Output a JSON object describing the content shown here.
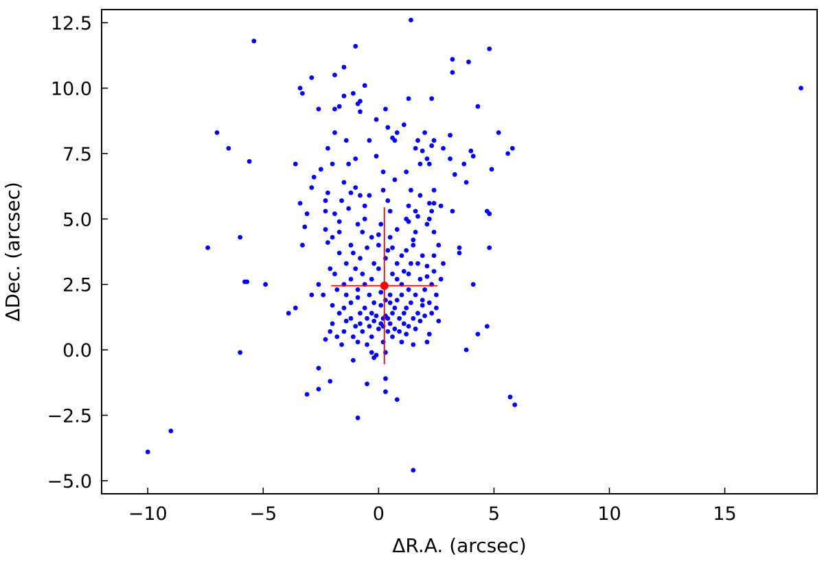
{
  "chart_data": {
    "type": "scatter",
    "title": "",
    "xlabel": "ΔR.A. (arcsec)",
    "ylabel": "ΔDec. (arcsec)",
    "xlim": [
      -12.0,
      19.0
    ],
    "ylim": [
      -5.5,
      13.0
    ],
    "xticks": [
      -10,
      -5,
      0,
      5,
      10,
      15
    ],
    "xtick_labels": [
      "−10",
      "−5",
      "0",
      "5",
      "10",
      "15"
    ],
    "yticks": [
      -5.0,
      -2.5,
      0.0,
      2.5,
      5.0,
      7.5,
      10.0,
      12.5
    ],
    "ytick_labels": [
      "−5.0",
      "−2.5",
      "0.0",
      "2.5",
      "5.0",
      "7.5",
      "10.0",
      "12.5"
    ],
    "tick_direction": "in",
    "grid": false,
    "series": [
      {
        "color": "#0000ff",
        "marker": "circle",
        "points": [
          [
            1.4,
            12.6
          ],
          [
            -5.4,
            11.8
          ],
          [
            -1.0,
            11.6
          ],
          [
            4.8,
            11.5
          ],
          [
            3.2,
            11.1
          ],
          [
            3.9,
            11.0
          ],
          [
            -1.5,
            10.8
          ],
          [
            -2.9,
            10.4
          ],
          [
            -1.9,
            10.5
          ],
          [
            3.2,
            10.6
          ],
          [
            -0.6,
            10.1
          ],
          [
            -1.1,
            9.8
          ],
          [
            -3.4,
            10.0
          ],
          [
            -3.3,
            9.8
          ],
          [
            -1.5,
            9.7
          ],
          [
            1.3,
            9.6
          ],
          [
            -0.8,
            9.5
          ],
          [
            2.3,
            9.6
          ],
          [
            -1.7,
            9.3
          ],
          [
            -2.6,
            9.2
          ],
          [
            -1.9,
            9.2
          ],
          [
            -0.8,
            9.1
          ],
          [
            0.3,
            9.2
          ],
          [
            -0.9,
            9.4
          ],
          [
            4.3,
            9.3
          ],
          [
            -0.1,
            8.8
          ],
          [
            0.4,
            8.5
          ],
          [
            1.1,
            8.6
          ],
          [
            2.0,
            8.3
          ],
          [
            -1.9,
            8.3
          ],
          [
            -7.0,
            8.3
          ],
          [
            0.8,
            8.3
          ],
          [
            1.7,
            8.0
          ],
          [
            2.4,
            8.0
          ],
          [
            3.1,
            8.2
          ],
          [
            -1.4,
            8.0
          ],
          [
            -0.4,
            8.0
          ],
          [
            0.6,
            8.1
          ],
          [
            0.7,
            8.0
          ],
          [
            5.2,
            8.3
          ],
          [
            -6.5,
            7.7
          ],
          [
            -2.2,
            7.7
          ],
          [
            1.6,
            7.7
          ],
          [
            1.9,
            7.6
          ],
          [
            2.3,
            7.8
          ],
          [
            2.8,
            7.7
          ],
          [
            4.0,
            7.6
          ],
          [
            4.1,
            7.4
          ],
          [
            5.6,
            7.5
          ],
          [
            5.8,
            7.7
          ],
          [
            -1.0,
            7.3
          ],
          [
            -0.1,
            7.4
          ],
          [
            2.1,
            7.3
          ],
          [
            3.1,
            7.3
          ],
          [
            3.7,
            7.1
          ],
          [
            -5.6,
            7.2
          ],
          [
            -3.6,
            7.1
          ],
          [
            -2.0,
            7.1
          ],
          [
            -1.3,
            7.1
          ],
          [
            1.8,
            7.1
          ],
          [
            2.2,
            7.1
          ],
          [
            4.9,
            6.9
          ],
          [
            -2.5,
            6.9
          ],
          [
            0.2,
            6.8
          ],
          [
            1.2,
            6.8
          ],
          [
            3.3,
            6.7
          ],
          [
            -2.8,
            6.6
          ],
          [
            0.7,
            6.5
          ],
          [
            -1.5,
            6.4
          ],
          [
            3.8,
            6.4
          ],
          [
            -2.9,
            6.2
          ],
          [
            -1.0,
            6.2
          ],
          [
            0.2,
            6.1
          ],
          [
            1.4,
            6.1
          ],
          [
            2.4,
            6.1
          ],
          [
            -2.2,
            6.0
          ],
          [
            -1.2,
            6.0
          ],
          [
            -0.8,
            5.9
          ],
          [
            -0.4,
            5.9
          ],
          [
            1.8,
            5.9
          ],
          [
            0.4,
            5.7
          ],
          [
            -2.3,
            5.7
          ],
          [
            -1.6,
            5.7
          ],
          [
            2.4,
            5.6
          ],
          [
            -3.4,
            5.6
          ],
          [
            1.3,
            5.5
          ],
          [
            2.2,
            5.6
          ],
          [
            2.7,
            5.5
          ],
          [
            -2.3,
            5.3
          ],
          [
            -1.3,
            5.4
          ],
          [
            -0.6,
            5.5
          ],
          [
            0.5,
            5.3
          ],
          [
            1.6,
            5.3
          ],
          [
            2.3,
            5.3
          ],
          [
            3.2,
            5.3
          ],
          [
            4.7,
            5.3
          ],
          [
            4.8,
            5.2
          ],
          [
            -3.1,
            5.2
          ],
          [
            -1.9,
            5.2
          ],
          [
            -0.6,
            5.0
          ],
          [
            1.2,
            5.0
          ],
          [
            1.7,
            5.1
          ],
          [
            2.2,
            5.0
          ],
          [
            -1.7,
            4.9
          ],
          [
            -0.9,
            4.8
          ],
          [
            0.1,
            4.8
          ],
          [
            1.3,
            4.9
          ],
          [
            2.1,
            4.8
          ],
          [
            -3.2,
            4.7
          ],
          [
            -2.3,
            4.6
          ],
          [
            -1.7,
            4.5
          ],
          [
            -0.7,
            4.5
          ],
          [
            0.8,
            4.6
          ],
          [
            1.6,
            4.5
          ],
          [
            2.4,
            4.5
          ],
          [
            -6.0,
            4.3
          ],
          [
            -2.0,
            4.3
          ],
          [
            -0.3,
            4.3
          ],
          [
            0.0,
            4.4
          ],
          [
            0.5,
            4.3
          ],
          [
            1.5,
            4.2
          ],
          [
            -3.3,
            4.0
          ],
          [
            -2.2,
            4.1
          ],
          [
            -1.2,
            4.0
          ],
          [
            -0.5,
            3.9
          ],
          [
            0.0,
            4.0
          ],
          [
            0.6,
            3.9
          ],
          [
            1.5,
            4.0
          ],
          [
            2.6,
            4.0
          ],
          [
            3.5,
            3.9
          ],
          [
            4.8,
            3.9
          ],
          [
            -7.4,
            3.9
          ],
          [
            -1.7,
            3.7
          ],
          [
            -1.1,
            3.7
          ],
          [
            0.4,
            3.8
          ],
          [
            1.2,
            3.8
          ],
          [
            3.5,
            3.7
          ],
          [
            -0.8,
            3.5
          ],
          [
            0.3,
            3.5
          ],
          [
            1.0,
            3.6
          ],
          [
            1.9,
            3.6
          ],
          [
            2.4,
            3.6
          ],
          [
            -1.4,
            3.3
          ],
          [
            -0.2,
            3.3
          ],
          [
            0.8,
            3.3
          ],
          [
            1.4,
            3.3
          ],
          [
            1.7,
            3.3
          ],
          [
            2.1,
            3.2
          ],
          [
            2.8,
            3.3
          ],
          [
            -2.1,
            3.1
          ],
          [
            -1.0,
            3.1
          ],
          [
            0.0,
            3.1
          ],
          [
            1.1,
            3.0
          ],
          [
            2.4,
            3.0
          ],
          [
            -1.9,
            2.9
          ],
          [
            -0.7,
            2.9
          ],
          [
            0.6,
            2.9
          ],
          [
            1.3,
            2.9
          ],
          [
            2.1,
            2.8
          ],
          [
            -1.2,
            2.7
          ],
          [
            -0.3,
            2.7
          ],
          [
            0.8,
            2.7
          ],
          [
            1.8,
            2.7
          ],
          [
            2.7,
            2.7
          ],
          [
            -5.8,
            2.6
          ],
          [
            -5.7,
            2.6
          ],
          [
            -1.5,
            2.5
          ],
          [
            -0.6,
            2.5
          ],
          [
            1.0,
            2.5
          ],
          [
            2.3,
            2.5
          ],
          [
            -4.9,
            2.5
          ],
          [
            -2.6,
            2.5
          ],
          [
            4.1,
            2.5
          ],
          [
            -1.8,
            2.3
          ],
          [
            -0.9,
            2.3
          ],
          [
            0.1,
            2.2
          ],
          [
            1.3,
            2.3
          ],
          [
            2.0,
            2.3
          ],
          [
            -2.4,
            2.1
          ],
          [
            -1.4,
            2.1
          ],
          [
            -0.4,
            2.1
          ],
          [
            0.5,
            2.1
          ],
          [
            1.0,
            2.1
          ],
          [
            1.6,
            2.1
          ],
          [
            2.5,
            2.1
          ],
          [
            -2.9,
            2.1
          ],
          [
            -0.9,
            2.0
          ],
          [
            0.3,
            1.9
          ],
          [
            0.8,
            1.9
          ],
          [
            1.9,
            1.9
          ],
          [
            -1.2,
            1.8
          ],
          [
            -0.2,
            1.8
          ],
          [
            0.5,
            1.8
          ],
          [
            1.4,
            1.8
          ],
          [
            2.2,
            1.8
          ],
          [
            -3.6,
            1.6
          ],
          [
            -2.0,
            1.7
          ],
          [
            -1.5,
            1.6
          ],
          [
            -0.6,
            1.6
          ],
          [
            0.1,
            1.7
          ],
          [
            0.7,
            1.6
          ],
          [
            1.2,
            1.6
          ],
          [
            1.9,
            1.7
          ],
          [
            2.5,
            1.6
          ],
          [
            -1.7,
            1.4
          ],
          [
            -0.8,
            1.4
          ],
          [
            -0.3,
            1.4
          ],
          [
            0.3,
            1.3
          ],
          [
            0.6,
            1.4
          ],
          [
            1.1,
            1.4
          ],
          [
            1.7,
            1.4
          ],
          [
            2.3,
            1.4
          ],
          [
            -3.9,
            1.4
          ],
          [
            -1.2,
            1.2
          ],
          [
            -0.5,
            1.2
          ],
          [
            -0.1,
            1.3
          ],
          [
            0.2,
            1.2
          ],
          [
            0.4,
            1.2
          ],
          [
            0.9,
            1.2
          ],
          [
            1.5,
            1.2
          ],
          [
            2.0,
            1.3
          ],
          [
            -2.0,
            1.0
          ],
          [
            -1.4,
            1.1
          ],
          [
            -0.8,
            1.0
          ],
          [
            -0.2,
            1.1
          ],
          [
            0.1,
            1.0
          ],
          [
            0.5,
            1.0
          ],
          [
            1.1,
            1.0
          ],
          [
            1.8,
            1.1
          ],
          [
            2.6,
            1.1
          ],
          [
            -1.0,
            0.9
          ],
          [
            -0.4,
            0.9
          ],
          [
            0.2,
            0.9
          ],
          [
            0.7,
            0.8
          ],
          [
            1.3,
            0.9
          ],
          [
            4.7,
            0.9
          ],
          [
            -2.1,
            0.7
          ],
          [
            -1.5,
            0.7
          ],
          [
            -0.7,
            0.7
          ],
          [
            0.0,
            0.8
          ],
          [
            0.4,
            0.7
          ],
          [
            0.9,
            0.7
          ],
          [
            1.6,
            0.8
          ],
          [
            2.2,
            0.6
          ],
          [
            -1.8,
            0.5
          ],
          [
            -1.1,
            0.5
          ],
          [
            -0.3,
            0.5
          ],
          [
            0.6,
            0.5
          ],
          [
            1.2,
            0.6
          ],
          [
            4.3,
            0.6
          ],
          [
            -2.3,
            0.4
          ],
          [
            -0.9,
            0.3
          ],
          [
            0.2,
            0.3
          ],
          [
            1.0,
            0.3
          ],
          [
            2.1,
            0.3
          ],
          [
            -1.6,
            0.2
          ],
          [
            -0.5,
            0.2
          ],
          [
            1.5,
            0.2
          ],
          [
            -6.0,
            -0.1
          ],
          [
            3.8,
            0.0
          ],
          [
            -0.3,
            -0.1
          ],
          [
            -0.1,
            -0.2
          ],
          [
            0.3,
            -0.1
          ],
          [
            -1.1,
            -0.4
          ],
          [
            -0.2,
            -0.3
          ],
          [
            -2.6,
            -0.7
          ],
          [
            0.3,
            -1.1
          ],
          [
            -2.1,
            -1.2
          ],
          [
            -0.5,
            -1.3
          ],
          [
            -2.6,
            -1.5
          ],
          [
            -3.1,
            -1.7
          ],
          [
            0.3,
            -1.6
          ],
          [
            0.8,
            -1.9
          ],
          [
            5.7,
            -1.8
          ],
          [
            5.9,
            -2.1
          ],
          [
            -0.9,
            -2.6
          ],
          [
            -9.0,
            -3.1
          ],
          [
            -10.0,
            -3.9
          ],
          [
            1.5,
            -4.6
          ],
          [
            18.3,
            10.0
          ]
        ]
      },
      {
        "color": "#ff0000",
        "marker": "circle",
        "points": [
          [
            0.25,
            2.45
          ]
        ],
        "xerr": 2.3,
        "yerr": 3.0
      }
    ]
  }
}
